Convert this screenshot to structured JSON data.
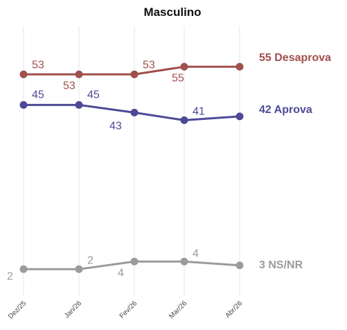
{
  "chart_data": {
    "type": "line",
    "title": "Masculino",
    "xlabel": "",
    "ylabel": "",
    "categories": [
      "Dez/25",
      "Jan/26",
      "Fev/26",
      "Mar/26",
      "Abr/26"
    ],
    "ylim": [
      0,
      60
    ],
    "grid": "vertical",
    "series": [
      {
        "key": "desaprova",
        "name": "Desaprova",
        "color": "#a0504c",
        "values": [
          53,
          53,
          53,
          55,
          55
        ],
        "labels": [
          "53",
          "53",
          "53",
          "55",
          ""
        ],
        "end_label": "55 Desaprova"
      },
      {
        "key": "aprova",
        "name": "Aprova",
        "color": "#4e4996",
        "values": [
          45,
          45,
          43,
          41,
          42
        ],
        "labels": [
          "45",
          "45",
          "43",
          "41",
          ""
        ],
        "end_label": "42 Aprova"
      },
      {
        "key": "nsnr",
        "name": "NS/NR",
        "color": "#9b9b9b",
        "values": [
          2,
          2,
          4,
          4,
          3
        ],
        "labels": [
          "2",
          "2",
          "4",
          "4",
          ""
        ],
        "end_label": "3 NS/NR"
      }
    ]
  }
}
